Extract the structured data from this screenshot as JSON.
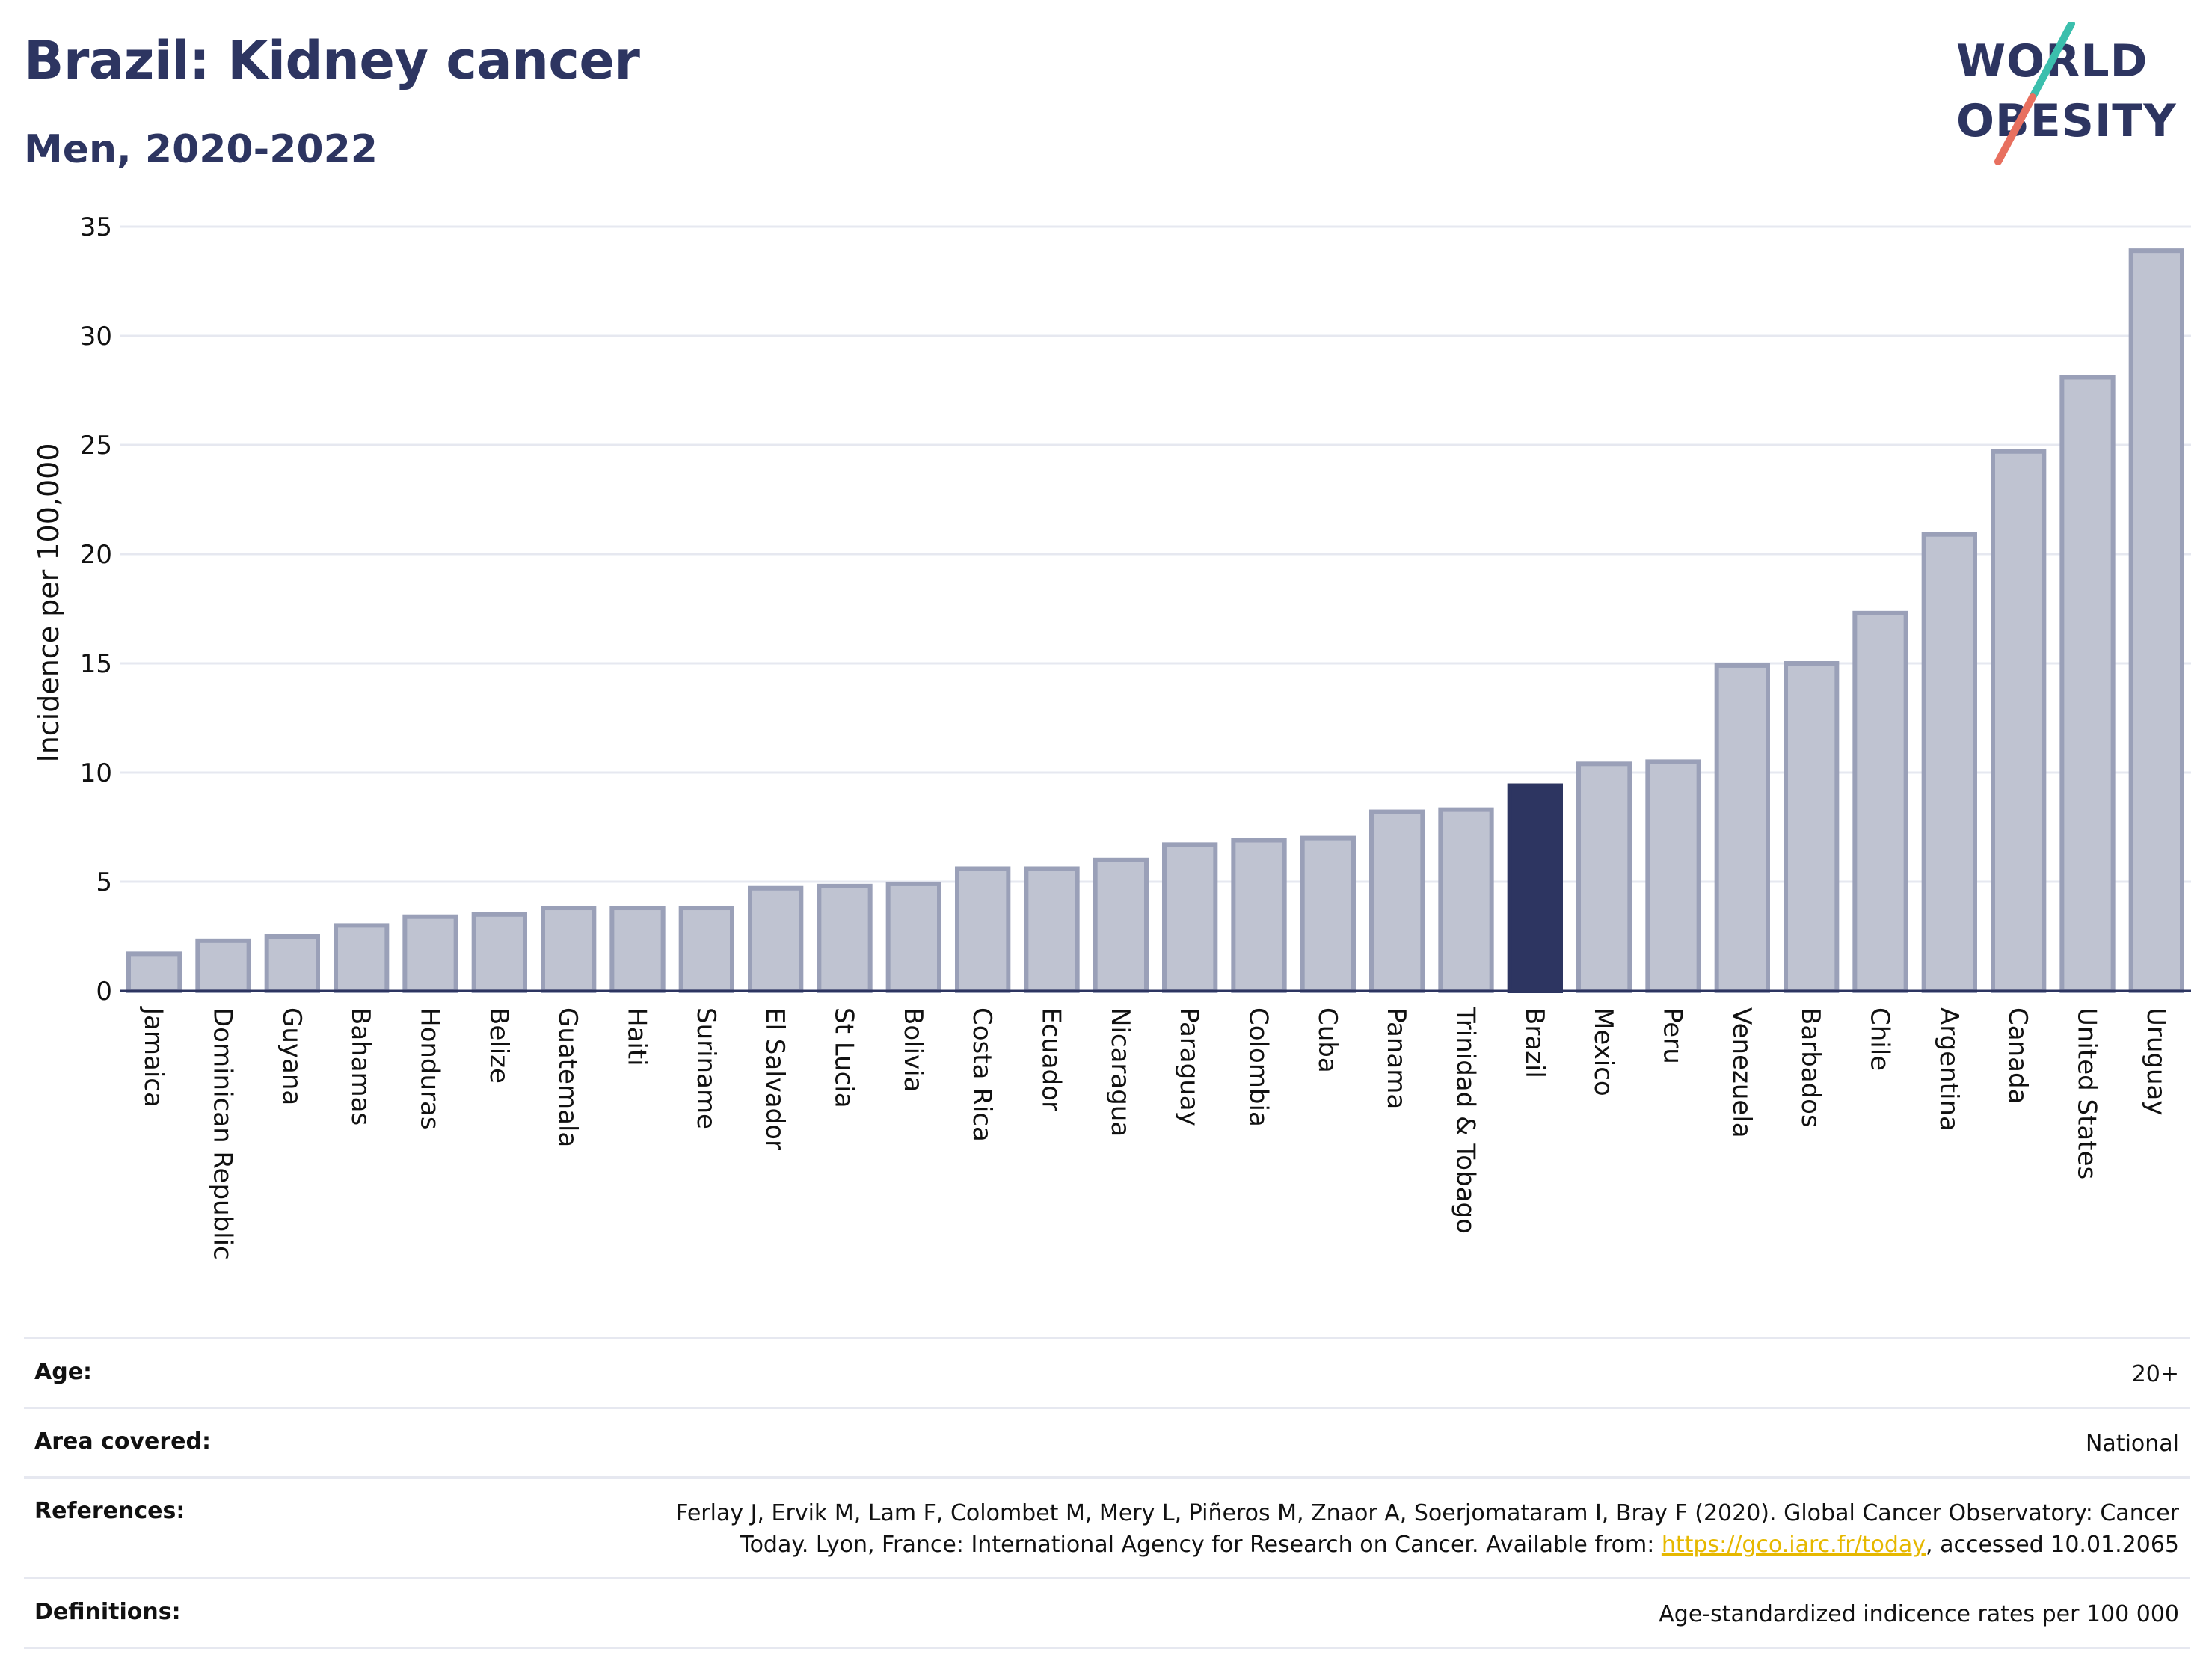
{
  "title": "Brazil: Kidney cancer",
  "subtitle": "Men, 2020-2022",
  "logo": {
    "line1": "WORLD",
    "line2": "OBESITY",
    "colors": {
      "text": "#2d3561",
      "slash_top": "#3bbfad",
      "slash_bottom": "#e8705f"
    }
  },
  "colors": {
    "bar": "#bfc3d1",
    "bar_stroke": "#9aa0b8",
    "highlight": "#2d3561",
    "grid": "#e6e8f0"
  },
  "chart_data": {
    "type": "bar",
    "ylabel": "Incidence per 100,000",
    "ylim": [
      0,
      35
    ],
    "yticks": [
      0,
      5,
      10,
      15,
      20,
      25,
      30,
      35
    ],
    "grid": true,
    "highlight": "Brazil",
    "categories": [
      "Jamaica",
      "Dominican Republic",
      "Guyana",
      "Bahamas",
      "Honduras",
      "Belize",
      "Guatemala",
      "Haiti",
      "Suriname",
      "El Salvador",
      "St Lucia",
      "Bolivia",
      "Costa Rica",
      "Ecuador",
      "Nicaragua",
      "Paraguay",
      "Colombia",
      "Cuba",
      "Panama",
      "Trinidad & Tobago",
      "Brazil",
      "Mexico",
      "Peru",
      "Venezuela",
      "Barbados",
      "Chile",
      "Argentina",
      "Canada",
      "United States",
      "Uruguay"
    ],
    "values": [
      1.7,
      2.3,
      2.5,
      3.0,
      3.4,
      3.5,
      3.8,
      3.8,
      3.8,
      4.7,
      4.8,
      4.9,
      5.6,
      5.6,
      6.0,
      6.7,
      6.9,
      7.0,
      8.2,
      8.3,
      9.4,
      10.4,
      10.5,
      14.9,
      15.0,
      17.3,
      20.9,
      24.7,
      28.1,
      33.9
    ]
  },
  "meta": {
    "age": {
      "label": "Age:",
      "value": "20+"
    },
    "area": {
      "label": "Area covered:",
      "value": "National"
    },
    "references": {
      "label": "References:",
      "line1": "Ferlay J, Ervik M, Lam F, Colombet M, Mery L, Piñeros M, Znaor A, Soerjomataram I, Bray F (2020). Global Cancer Observatory: Cancer",
      "line2_pre": "Today. Lyon, France: International Agency for Research on Cancer. Available from: ",
      "link": "https://gco.iarc.fr/today",
      "line2_post": ", accessed 10.01.2065"
    },
    "definitions": {
      "label": "Definitions:",
      "value": "Age-standardized indicence rates per 100 000"
    }
  }
}
